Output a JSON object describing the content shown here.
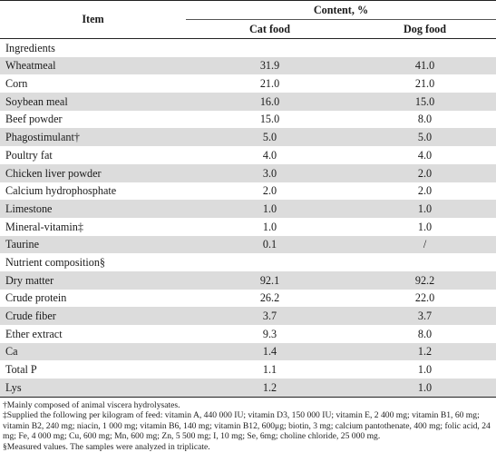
{
  "table": {
    "header": {
      "item": "Item",
      "content": "Content, %",
      "cat": "Cat food",
      "dog": "Dog food"
    },
    "rows": [
      {
        "item": "Ingredients",
        "cat": "",
        "dog": ""
      },
      {
        "item": "Wheatmeal",
        "cat": "31.9",
        "dog": "41.0"
      },
      {
        "item": "Corn",
        "cat": "21.0",
        "dog": "21.0"
      },
      {
        "item": "Soybean meal",
        "cat": "16.0",
        "dog": "15.0"
      },
      {
        "item": "Beef powder",
        "cat": "15.0",
        "dog": "8.0"
      },
      {
        "item": "Phagostimulant†",
        "cat": "5.0",
        "dog": "5.0"
      },
      {
        "item": "Poultry fat",
        "cat": "4.0",
        "dog": "4.0"
      },
      {
        "item": "Chicken liver powder",
        "cat": "3.0",
        "dog": "2.0"
      },
      {
        "item": "Calcium hydrophosphate",
        "cat": "2.0",
        "dog": "2.0"
      },
      {
        "item": "Limestone",
        "cat": "1.0",
        "dog": "1.0"
      },
      {
        "item": "Mineral-vitamin‡",
        "cat": "1.0",
        "dog": "1.0"
      },
      {
        "item": "Taurine",
        "cat": "0.1",
        "dog": "/"
      },
      {
        "item": "Nutrient composition§",
        "cat": "",
        "dog": ""
      },
      {
        "item": "Dry matter",
        "cat": "92.1",
        "dog": "92.2"
      },
      {
        "item": "Crude protein",
        "cat": "26.2",
        "dog": "22.0"
      },
      {
        "item": "Crude fiber",
        "cat": "3.7",
        "dog": "3.7"
      },
      {
        "item": "Ether extract",
        "cat": "9.3",
        "dog": "8.0"
      },
      {
        "item": "Ca",
        "cat": "1.4",
        "dog": "1.2"
      },
      {
        "item": "Total P",
        "cat": "1.1",
        "dog": "1.0"
      },
      {
        "item": "Lys",
        "cat": "1.2",
        "dog": "1.0"
      }
    ]
  },
  "notes": {
    "dagger": "†Mainly composed of animal viscera hydrolysates.",
    "double_dagger": "‡Supplied the following per kilogram of feed: vitamin A, 440 000 IU; vitamin D3, 150 000 IU; vitamin E, 2 400 mg; vitamin B1, 60 mg; vitamin B2, 240 mg; niacin, 1 000 mg; vitamin B6, 140 mg; vitamin B12, 600μg; biotin, 3 mg; calcium pantothenate, 400 mg; folic acid, 24 mg; Fe, 4 000 mg; Cu, 600 mg; Mn, 600 mg; Zn, 5 500 mg; I, 10 mg; Se, 6mg; choline chloride, 25 000 mg.",
    "section": "§Measured values. The samples were analyzed in triplicate."
  }
}
